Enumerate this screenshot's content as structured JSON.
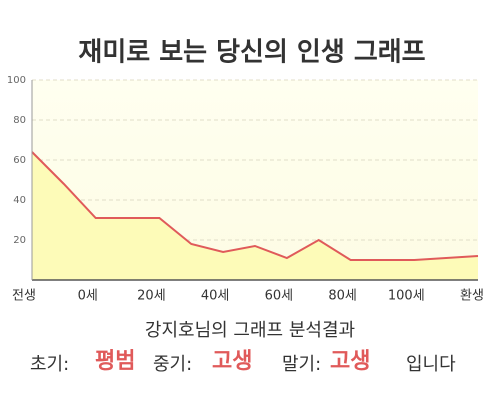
{
  "chart_data": {
    "type": "area",
    "title": "재미로 보는 당신의 인생 그래프",
    "categories": [
      "전생",
      null,
      "0세",
      null,
      "20세",
      null,
      "40세",
      null,
      "60세",
      null,
      "80세",
      null,
      "100세",
      null,
      "환생"
    ],
    "values": [
      64,
      48,
      31,
      31,
      31,
      18,
      14,
      17,
      11,
      20,
      10,
      10,
      10,
      11,
      12
    ],
    "color": "#e05a5a",
    "fill": "#fdfbb8",
    "ylim": [
      0,
      100
    ],
    "yticks": [
      20,
      40,
      60,
      80,
      100
    ],
    "grid": true
  },
  "analysis": {
    "heading": "강지호님의 그래프 분석결과",
    "early_label": "초기:",
    "early": "평범",
    "middle_label": "중기:",
    "middle": "고생",
    "late_label": "말기:",
    "late": "고생",
    "ending": "입니다"
  }
}
